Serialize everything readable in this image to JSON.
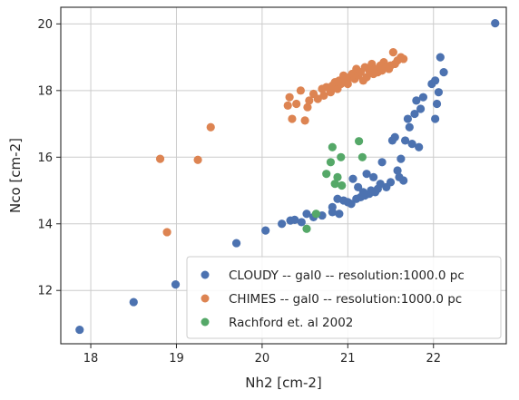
{
  "chart_data": {
    "type": "scatter",
    "xlabel": "Nh2 [cm-2]",
    "ylabel": "Nco [cm-2]",
    "xlim": [
      17.65,
      22.85
    ],
    "ylim": [
      10.4,
      20.5
    ],
    "xticks": [
      18,
      19,
      20,
      21,
      22
    ],
    "yticks": [
      12,
      14,
      16,
      18,
      20
    ],
    "grid": true,
    "legend_position": "lower right",
    "series": [
      {
        "name": "CLOUDY -- gal0 -- resolution:1000.0 pc",
        "color": "#4c72b0",
        "points": [
          [
            17.87,
            10.82
          ],
          [
            18.5,
            11.65
          ],
          [
            18.99,
            12.18
          ],
          [
            19.7,
            13.42
          ],
          [
            20.04,
            13.8
          ],
          [
            20.23,
            14.0
          ],
          [
            20.33,
            14.1
          ],
          [
            20.38,
            14.12
          ],
          [
            20.46,
            14.05
          ],
          [
            20.52,
            14.3
          ],
          [
            20.6,
            14.2
          ],
          [
            20.7,
            14.25
          ],
          [
            20.82,
            14.35
          ],
          [
            20.82,
            14.5
          ],
          [
            20.88,
            14.75
          ],
          [
            20.9,
            14.3
          ],
          [
            20.95,
            14.7
          ],
          [
            21.0,
            14.65
          ],
          [
            21.04,
            14.6
          ],
          [
            21.06,
            15.35
          ],
          [
            21.1,
            14.75
          ],
          [
            21.12,
            15.1
          ],
          [
            21.15,
            14.8
          ],
          [
            21.18,
            14.95
          ],
          [
            21.2,
            14.85
          ],
          [
            21.22,
            15.5
          ],
          [
            21.25,
            14.9
          ],
          [
            21.27,
            15.0
          ],
          [
            21.3,
            15.4
          ],
          [
            21.32,
            14.95
          ],
          [
            21.35,
            15.05
          ],
          [
            21.38,
            15.2
          ],
          [
            21.4,
            15.85
          ],
          [
            21.45,
            15.1
          ],
          [
            21.5,
            15.25
          ],
          [
            21.52,
            16.5
          ],
          [
            21.55,
            16.6
          ],
          [
            21.58,
            15.6
          ],
          [
            21.6,
            15.4
          ],
          [
            21.62,
            15.95
          ],
          [
            21.65,
            15.3
          ],
          [
            21.67,
            16.5
          ],
          [
            21.7,
            17.15
          ],
          [
            21.72,
            16.9
          ],
          [
            21.75,
            16.4
          ],
          [
            21.78,
            17.3
          ],
          [
            21.8,
            17.7
          ],
          [
            21.83,
            16.3
          ],
          [
            21.85,
            17.45
          ],
          [
            21.88,
            17.8
          ],
          [
            21.98,
            18.2
          ],
          [
            22.02,
            18.3
          ],
          [
            22.02,
            17.15
          ],
          [
            22.04,
            17.6
          ],
          [
            22.06,
            17.95
          ],
          [
            22.08,
            19.0
          ],
          [
            22.12,
            18.55
          ],
          [
            22.72,
            20.02
          ]
        ]
      },
      {
        "name": "CHIMES -- gal0 -- resolution:1000.0 pc",
        "color": "#dd8452",
        "points": [
          [
            18.81,
            15.95
          ],
          [
            18.89,
            13.75
          ],
          [
            19.25,
            15.92
          ],
          [
            19.4,
            16.9
          ],
          [
            20.3,
            17.55
          ],
          [
            20.32,
            17.8
          ],
          [
            20.35,
            17.15
          ],
          [
            20.4,
            17.6
          ],
          [
            20.45,
            18.0
          ],
          [
            20.5,
            17.1
          ],
          [
            20.53,
            17.5
          ],
          [
            20.55,
            17.7
          ],
          [
            20.6,
            17.9
          ],
          [
            20.65,
            17.75
          ],
          [
            20.7,
            18.05
          ],
          [
            20.72,
            17.85
          ],
          [
            20.75,
            18.1
          ],
          [
            20.8,
            17.95
          ],
          [
            20.82,
            18.15
          ],
          [
            20.85,
            18.25
          ],
          [
            20.88,
            18.05
          ],
          [
            20.9,
            18.3
          ],
          [
            20.92,
            18.2
          ],
          [
            20.95,
            18.45
          ],
          [
            20.97,
            18.3
          ],
          [
            21.0,
            18.2
          ],
          [
            21.02,
            18.4
          ],
          [
            21.05,
            18.5
          ],
          [
            21.08,
            18.35
          ],
          [
            21.1,
            18.65
          ],
          [
            21.12,
            18.45
          ],
          [
            21.15,
            18.55
          ],
          [
            21.18,
            18.3
          ],
          [
            21.2,
            18.7
          ],
          [
            21.22,
            18.4
          ],
          [
            21.25,
            18.6
          ],
          [
            21.28,
            18.8
          ],
          [
            21.3,
            18.5
          ],
          [
            21.32,
            18.65
          ],
          [
            21.35,
            18.55
          ],
          [
            21.38,
            18.75
          ],
          [
            21.4,
            18.6
          ],
          [
            21.42,
            18.85
          ],
          [
            21.45,
            18.7
          ],
          [
            21.48,
            18.65
          ],
          [
            21.5,
            18.75
          ],
          [
            21.53,
            19.15
          ],
          [
            21.55,
            18.8
          ],
          [
            21.58,
            18.9
          ],
          [
            21.62,
            19.0
          ],
          [
            21.65,
            18.95
          ]
        ]
      },
      {
        "name": "Rachford et. al 2002",
        "color": "#55a868",
        "points": [
          [
            20.52,
            13.85
          ],
          [
            20.63,
            14.3
          ],
          [
            20.75,
            15.5
          ],
          [
            20.8,
            15.85
          ],
          [
            20.82,
            16.3
          ],
          [
            20.85,
            15.2
          ],
          [
            20.88,
            15.4
          ],
          [
            20.92,
            16.0
          ],
          [
            20.93,
            15.15
          ],
          [
            21.13,
            16.48
          ],
          [
            21.17,
            16.0
          ]
        ]
      }
    ]
  }
}
